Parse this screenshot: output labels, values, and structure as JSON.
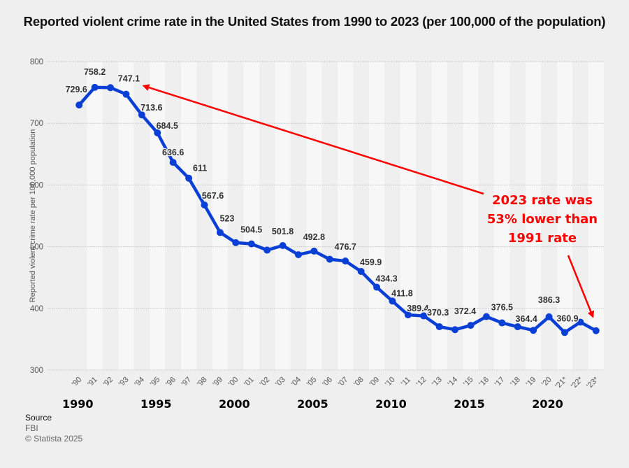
{
  "chart_data": {
    "type": "line",
    "title": "Reported violent crime rate in the United States from 1990 to 2023 (per 100,000 of the population)",
    "xlabel": "",
    "ylabel": "Reported violent crime rate per 100,000 population",
    "ylim": [
      300,
      800
    ],
    "yticks": [
      300,
      400,
      500,
      600,
      700,
      800
    ],
    "grid": true,
    "categories": [
      "'90",
      "'91",
      "'92",
      "'93",
      "'94",
      "'95",
      "'96",
      "'97",
      "'98",
      "'99",
      "'00",
      "'01",
      "'02",
      "'03",
      "'04",
      "'05",
      "'06",
      "'07",
      "'08",
      "'09",
      "'10",
      "'11",
      "'12",
      "'13",
      "'14",
      "'15",
      "'16",
      "'17",
      "'18",
      "'19",
      "'20",
      "'21*",
      "'22*",
      "'23*"
    ],
    "series": [
      {
        "name": "Violent crime rate",
        "color": "#0a3fd6",
        "values": [
          729.6,
          758.2,
          757.7,
          747.1,
          713.6,
          684.5,
          636.6,
          611,
          567.6,
          523,
          506.5,
          504.5,
          494.4,
          501.8,
          487,
          492.8,
          479.6,
          476.7,
          459.9,
          434.3,
          411.8,
          389.4,
          387.8,
          370.3,
          365.5,
          372.4,
          386.6,
          376.5,
          370.2,
          364.4,
          386.3,
          360.9,
          377.7,
          363.8
        ],
        "data_labels": [
          "729.6",
          "758.2",
          "",
          "747.1",
          "713.6",
          "684.5",
          "636.6",
          "611",
          "567.6",
          "523",
          "",
          "504.5",
          "",
          "501.8",
          "",
          "492.8",
          "",
          "476.7",
          "459.9",
          "434.3",
          "411.8",
          "389.4",
          "",
          "370.3",
          "",
          "372.4",
          "",
          "376.5",
          "",
          "364.4",
          "386.3",
          "360.9",
          "",
          ""
        ]
      }
    ],
    "decade_labels": [
      {
        "category": "'90",
        "text": "1990"
      },
      {
        "category": "'95",
        "text": "1995"
      },
      {
        "category": "'00",
        "text": "2000"
      },
      {
        "category": "'05",
        "text": "2005"
      },
      {
        "category": "'10",
        "text": "2010"
      },
      {
        "category": "'15",
        "text": "2015"
      },
      {
        "category": "'20",
        "text": "2020"
      }
    ],
    "annotations": [
      {
        "text_lines": [
          "2023 rate was",
          "53% lower than",
          "1991 rate"
        ],
        "color": "#ff0000",
        "arrows_to": [
          "'93",
          "'23*"
        ]
      }
    ]
  },
  "footer": {
    "source_label": "Source",
    "source_name": "FBI",
    "copyright": "© Statista 2025"
  }
}
